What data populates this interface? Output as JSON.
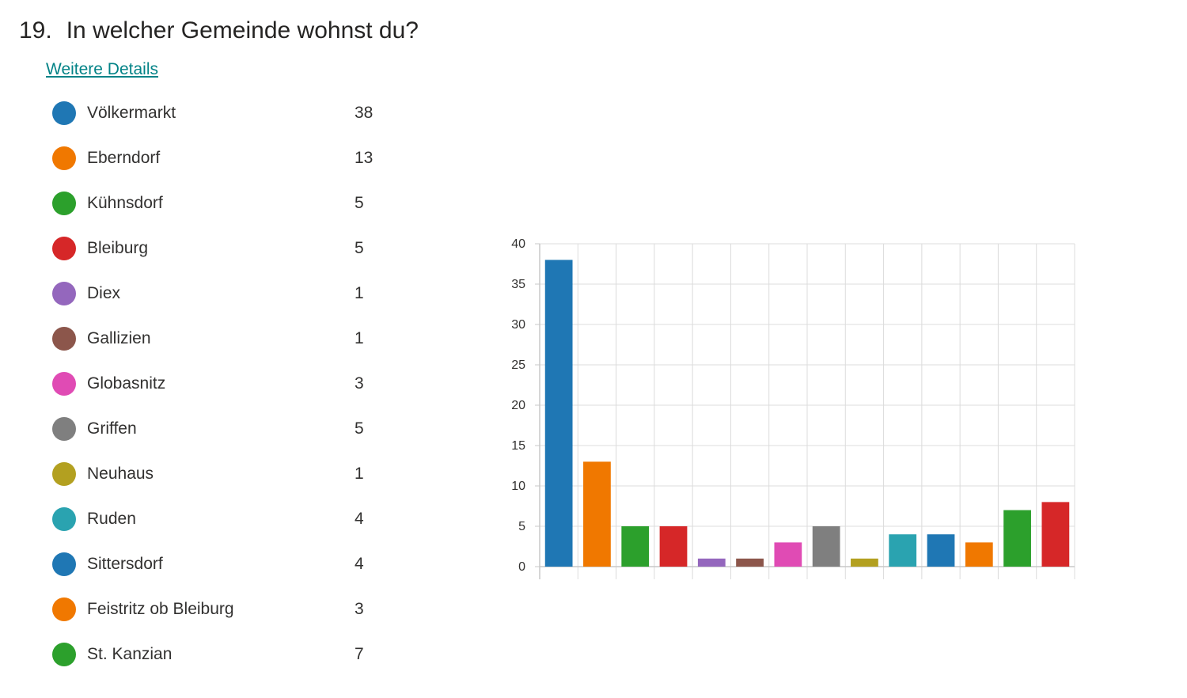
{
  "question": {
    "number": "19.",
    "title": "In welcher Gemeinde wohnst du?",
    "details_link": "Weitere Details"
  },
  "chart_data": {
    "type": "bar",
    "title": "",
    "xlabel": "",
    "ylabel": "",
    "ylim": [
      0,
      40
    ],
    "yticks": [
      0,
      5,
      10,
      15,
      20,
      25,
      30,
      35,
      40
    ],
    "grid": true,
    "legend_position": "left",
    "categories": [
      "Völkermarkt",
      "Eberndorf",
      "Kühnsdorf",
      "Bleiburg",
      "Diex",
      "Gallizien",
      "Globasnitz",
      "Griffen",
      "Neuhaus",
      "Ruden",
      "Sittersdorf",
      "Feistritz ob Bleiburg",
      "St. Kanzian",
      ""
    ],
    "values": [
      38,
      13,
      5,
      5,
      1,
      1,
      3,
      5,
      1,
      4,
      4,
      3,
      7,
      8
    ],
    "colors": [
      "#1f77b4",
      "#f07800",
      "#2ca02c",
      "#d62728",
      "#9467bd",
      "#8c564b",
      "#e04bb4",
      "#7f7f7f",
      "#b3a020",
      "#2aa3b0",
      "#1f77b4",
      "#f07800",
      "#2ca02c",
      "#d62728"
    ]
  },
  "legend": [
    {
      "label": "Völkermarkt",
      "count": "38",
      "color": "#1f77b4"
    },
    {
      "label": "Eberndorf",
      "count": "13",
      "color": "#f07800"
    },
    {
      "label": "Kühnsdorf",
      "count": "5",
      "color": "#2ca02c"
    },
    {
      "label": "Bleiburg",
      "count": "5",
      "color": "#d62728"
    },
    {
      "label": "Diex",
      "count": "1",
      "color": "#9467bd"
    },
    {
      "label": "Gallizien",
      "count": "1",
      "color": "#8c564b"
    },
    {
      "label": "Globasnitz",
      "count": "3",
      "color": "#e04bb4"
    },
    {
      "label": "Griffen",
      "count": "5",
      "color": "#7f7f7f"
    },
    {
      "label": "Neuhaus",
      "count": "1",
      "color": "#b3a020"
    },
    {
      "label": "Ruden",
      "count": "4",
      "color": "#2aa3b0"
    },
    {
      "label": "Sittersdorf",
      "count": "4",
      "color": "#1f77b4"
    },
    {
      "label": "Feistritz ob Bleiburg",
      "count": "3",
      "color": "#f07800"
    },
    {
      "label": "St. Kanzian",
      "count": "7",
      "color": "#2ca02c"
    }
  ]
}
